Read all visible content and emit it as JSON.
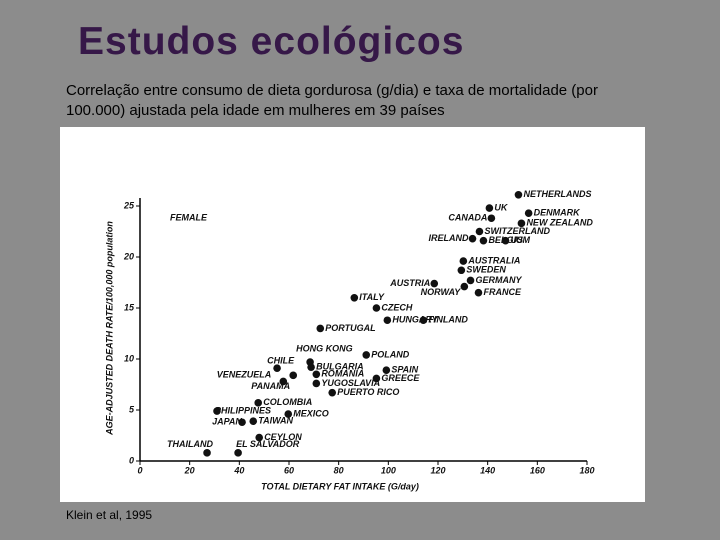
{
  "slide": {
    "title": "Estudos ecológicos",
    "subtitle": "Correlação entre consumo de dieta gordurosa (g/dia) e taxa de mortalidade (por 100.000) ajustada pela idade em mulheres em 39 países",
    "source": "Klein et al, 1995"
  },
  "chart_data": {
    "type": "scatter",
    "annotation": "FEMALE",
    "x_label": "TOTAL DIETARY FAT INTAKE (G/day)",
    "y_label": "AGE-ADJUSTED DEATH RATE/100,000 population",
    "xlim": [
      0,
      180
    ],
    "ylim": [
      0,
      25
    ],
    "xticks": [
      0,
      20,
      40,
      60,
      80,
      100,
      120,
      140,
      160,
      180
    ],
    "yticks": [
      0,
      5,
      10,
      15,
      20,
      25
    ],
    "color": "#111111",
    "labels": [
      "NETHERLANDS",
      "UK",
      "CANADA",
      "DENMARK",
      "NEW ZEALAND",
      "SWITZERLAND",
      "IRELAND",
      "BELGIUM",
      "US",
      "AUSTRALIA",
      "SWEDEN",
      "GERMANY",
      "AUSTRIA",
      "NORWAY",
      "FRANCE",
      "ITALY",
      "CZECH",
      "FINLAND",
      "HUNGARY",
      "PORTUGAL",
      "POLAND",
      "HONG KONG",
      "CHILE",
      "BULGARIA",
      "VENEZUELA",
      "PANAMA",
      "ROMANIA",
      "YUGOSLAVIA",
      "SPAIN",
      "GREECE",
      "PUERTO RICO",
      "COLOMBIA",
      "MEXICO",
      "PHILIPPINES",
      "JAPAN",
      "TAIWAN",
      "CEYLON",
      "THAILAND",
      "EL SALVADOR"
    ],
    "x": [
      152.4,
      140.7,
      141.5,
      156.5,
      153.6,
      136.7,
      133.9,
      138.3,
      147.2,
      130.2,
      129.4,
      133.1,
      118.5,
      130.6,
      136.3,
      86.3,
      95.2,
      114.1,
      99.6,
      72.6,
      91.1,
      68.5,
      55.2,
      68.9,
      61.7,
      57.7,
      71.0,
      71.0,
      99.2,
      95.2,
      77.4,
      47.6,
      59.7,
      31.0,
      41.1,
      45.6,
      48.0,
      27.0,
      39.5
    ],
    "values": [
      26.1,
      24.8,
      23.8,
      24.3,
      23.3,
      22.5,
      21.8,
      21.6,
      21.6,
      19.6,
      18.7,
      17.7,
      17.4,
      17.1,
      16.5,
      16.0,
      15.0,
      13.8,
      13.8,
      13.0,
      10.4,
      9.7,
      9.1,
      9.2,
      8.4,
      7.8,
      8.5,
      7.6,
      8.9,
      8.1,
      6.7,
      5.7,
      4.6,
      4.9,
      3.8,
      3.9,
      2.3,
      0.8,
      0.8
    ]
  }
}
